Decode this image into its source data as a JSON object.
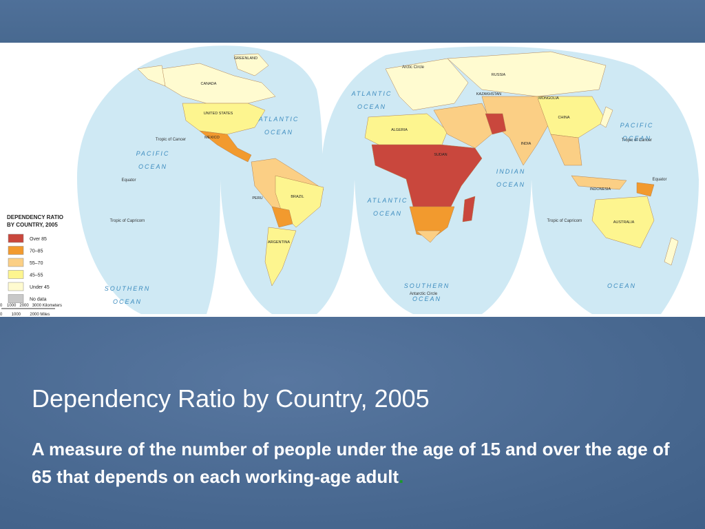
{
  "slide": {
    "title": "Dependency Ratio by Country, 2005",
    "subtitle": {
      "text": "A measure of the number of people under the age of 15 and over the age of 65 that depends on each working-age adult",
      "end": "."
    }
  },
  "map": {
    "legend": {
      "title": [
        "DEPENDENCY RATIO",
        "BY COUNTRY, 2005"
      ],
      "items": [
        {
          "label": "Over 85",
          "color": "#c9473d"
        },
        {
          "label": "70–85",
          "color": "#f29a2e"
        },
        {
          "label": "55–70",
          "color": "#fbcf85"
        },
        {
          "label": "45–55",
          "color": "#fdf58f"
        },
        {
          "label": "Under 45",
          "color": "#fffbd0"
        },
        {
          "label": "No data",
          "color": "#c8c8c8"
        }
      ]
    },
    "scale": {
      "km": "0    1000   2000   3000 Kilometers",
      "miles": "0        1000        2000 Miles"
    },
    "oceans": [
      {
        "lines": [
          "ATLANTIC",
          "OCEAN"
        ]
      },
      {
        "lines": [
          "PACIFIC",
          "OCEAN"
        ]
      },
      {
        "lines": [
          "ATLANTIC",
          "OCEAN"
        ]
      },
      {
        "lines": [
          "ATLANTIC",
          "OCEAN"
        ]
      },
      {
        "lines": [
          "INDIAN",
          "OCEAN"
        ]
      },
      {
        "lines": [
          "PACIFIC",
          "OCEAN"
        ]
      },
      {
        "lines": [
          "SOUTHERN",
          "OCEAN"
        ]
      },
      {
        "lines": [
          "SOUTHERN",
          "OCEAN"
        ]
      },
      {
        "lines": [
          "OCEAN"
        ]
      }
    ],
    "lines": [
      "Arctic Circle",
      "Tropic of Cancer",
      "Tropic of Cancer",
      "Equator",
      "Equator",
      "Tropic of Capricorn",
      "Tropic of Capricorn",
      "Antarctic Circle"
    ],
    "countries": [
      "CANADA",
      "UNITED STATES",
      "MEXICO",
      "BRAZIL",
      "PERU",
      "ARGENTINA",
      "RUSSIA",
      "CHINA",
      "INDIA",
      "INDONESIA",
      "AUSTRALIA",
      "ALGERIA",
      "SUDAN",
      "MONGOLIA",
      "KAZAKHSTAN",
      "GREENLAND"
    ]
  }
}
